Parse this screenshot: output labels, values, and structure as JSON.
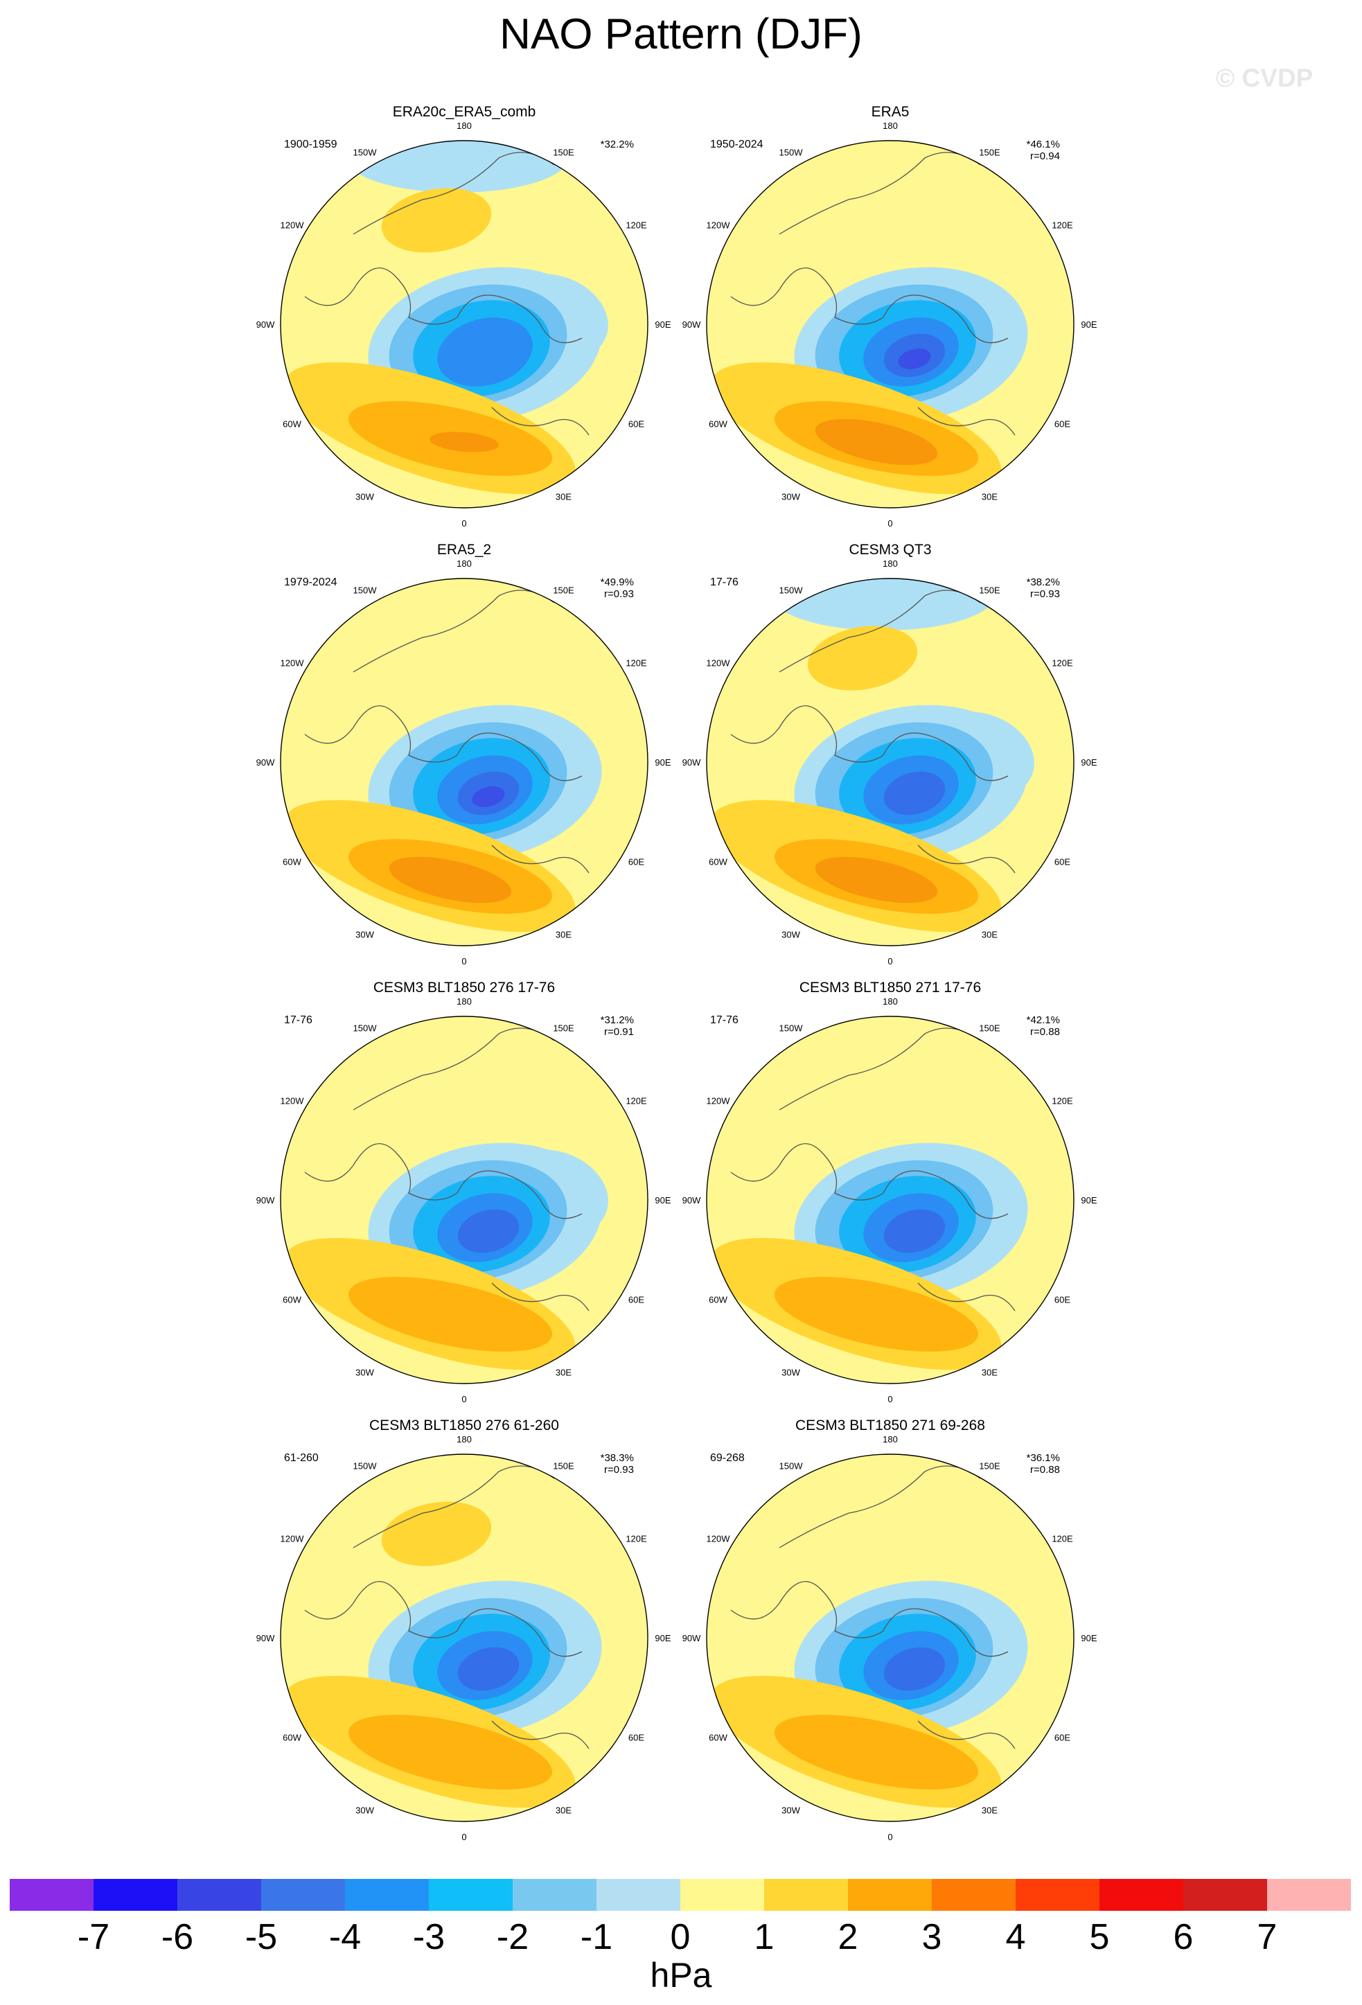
{
  "title": "NAO Pattern (DJF)",
  "watermark": "© CVDP",
  "lon_labels": [
    "180",
    "150E",
    "120E",
    "90E",
    "60E",
    "30E",
    "0",
    "30W",
    "60W",
    "90W",
    "120W",
    "150W"
  ],
  "colors": {
    "zero": "#fff791",
    "neg1": "#aee0f5",
    "neg2": "#6fc2f2",
    "neg3": "#19b4f5",
    "neg4": "#2b8cf4",
    "neg5": "#346ee9",
    "neg6": "#3b4ee6",
    "pos1": "#ffd633",
    "pos2": "#ffb30f",
    "pos3": "#f79709",
    "pos4": "#f56f00"
  },
  "panels": [
    {
      "title": "ERA20c_ERA5_comb",
      "period": "1900-1959",
      "pct": "32.2%*",
      "r": ""
    },
    {
      "title": "ERA5",
      "period": "1950-2024",
      "pct": "46.1%*",
      "r": "r=0.94"
    },
    {
      "title": "ERA5_2",
      "period": "1979-2024",
      "pct": "49.9%*",
      "r": "r=0.93"
    },
    {
      "title": "CESM3 QT3",
      "period": "17-76",
      "pct": "38.2%*",
      "r": "r=0.93"
    },
    {
      "title": "CESM3 BLT1850 276 17-76",
      "period": "17-76",
      "pct": "31.2%*",
      "r": "r=0.91"
    },
    {
      "title": "CESM3 BLT1850 271 17-76",
      "period": "17-76",
      "pct": "42.1%*",
      "r": "r=0.88"
    },
    {
      "title": "CESM3 BLT1850 276 61-260",
      "period": "61-260",
      "pct": "38.3%*",
      "r": "r=0.93"
    },
    {
      "title": "CESM3 BLT1850 271 69-268",
      "period": "69-268",
      "pct": "36.1%*",
      "r": "r=0.88"
    }
  ],
  "colorbar": {
    "colors": [
      "#8a2be8",
      "#1d10f7",
      "#3845e4",
      "#3b76e8",
      "#2293f6",
      "#10bef8",
      "#79c8f0",
      "#b4dff2",
      "#fff88f",
      "#ffd633",
      "#ffa80a",
      "#ff7a05",
      "#ff3d06",
      "#f20c0c",
      "#d41f1f",
      "#ffb2b2"
    ],
    "ticks": [
      "-7",
      "-6",
      "-5",
      "-4",
      "-3",
      "-2",
      "-1",
      "0",
      "1",
      "2",
      "3",
      "4",
      "5",
      "6",
      "7"
    ],
    "units": "hPa"
  }
}
